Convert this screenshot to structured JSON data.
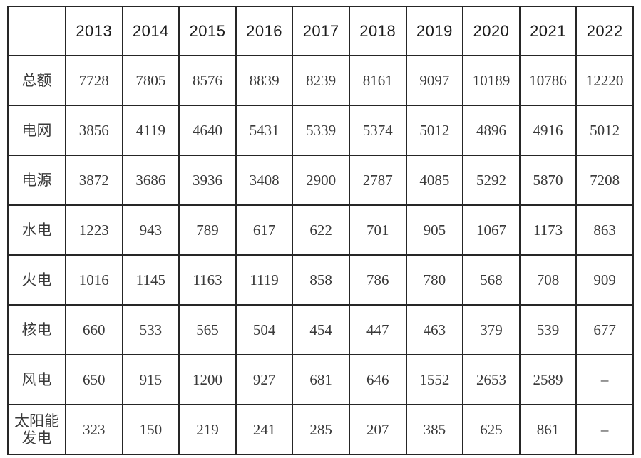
{
  "colors": {
    "background": "#ffffff",
    "border": "#262626",
    "header_text": "#1c1c1c",
    "cell_text": "#3a3a3a"
  },
  "table": {
    "corner_label": "",
    "years": [
      "2013",
      "2014",
      "2015",
      "2016",
      "2017",
      "2018",
      "2019",
      "2020",
      "2021",
      "2022"
    ],
    "rows": [
      {
        "label": "总额",
        "values": [
          "7728",
          "7805",
          "8576",
          "8839",
          "8239",
          "8161",
          "9097",
          "10189",
          "10786",
          "12220"
        ]
      },
      {
        "label": "电网",
        "values": [
          "3856",
          "4119",
          "4640",
          "5431",
          "5339",
          "5374",
          "5012",
          "4896",
          "4916",
          "5012"
        ]
      },
      {
        "label": "电源",
        "values": [
          "3872",
          "3686",
          "3936",
          "3408",
          "2900",
          "2787",
          "4085",
          "5292",
          "5870",
          "7208"
        ]
      },
      {
        "label": "水电",
        "values": [
          "1223",
          "943",
          "789",
          "617",
          "622",
          "701",
          "905",
          "1067",
          "1173",
          "863"
        ]
      },
      {
        "label": "火电",
        "values": [
          "1016",
          "1145",
          "1163",
          "1119",
          "858",
          "786",
          "780",
          "568",
          "708",
          "909"
        ]
      },
      {
        "label": "核电",
        "values": [
          "660",
          "533",
          "565",
          "504",
          "454",
          "447",
          "463",
          "379",
          "539",
          "677"
        ]
      },
      {
        "label": "风电",
        "values": [
          "650",
          "915",
          "1200",
          "927",
          "681",
          "646",
          "1552",
          "2653",
          "2589",
          "–"
        ]
      },
      {
        "label": "太阳能发电",
        "values": [
          "323",
          "150",
          "219",
          "241",
          "285",
          "207",
          "385",
          "625",
          "861",
          "–"
        ]
      }
    ]
  },
  "chart_data": {
    "type": "table",
    "title": "",
    "categories": [
      "2013",
      "2014",
      "2015",
      "2016",
      "2017",
      "2018",
      "2019",
      "2020",
      "2021",
      "2022"
    ],
    "series": [
      {
        "name": "总额",
        "values": [
          7728,
          7805,
          8576,
          8839,
          8239,
          8161,
          9097,
          10189,
          10786,
          12220
        ]
      },
      {
        "name": "电网",
        "values": [
          3856,
          4119,
          4640,
          5431,
          5339,
          5374,
          5012,
          4896,
          4916,
          5012
        ]
      },
      {
        "name": "电源",
        "values": [
          3872,
          3686,
          3936,
          3408,
          2900,
          2787,
          4085,
          5292,
          5870,
          7208
        ]
      },
      {
        "name": "水电",
        "values": [
          1223,
          943,
          789,
          617,
          622,
          701,
          905,
          1067,
          1173,
          863
        ]
      },
      {
        "name": "火电",
        "values": [
          1016,
          1145,
          1163,
          1119,
          858,
          786,
          780,
          568,
          708,
          909
        ]
      },
      {
        "name": "核电",
        "values": [
          660,
          533,
          565,
          504,
          454,
          447,
          463,
          379,
          539,
          677
        ]
      },
      {
        "name": "风电",
        "values": [
          650,
          915,
          1200,
          927,
          681,
          646,
          1552,
          2653,
          2589,
          null
        ]
      },
      {
        "name": "太阳能发电",
        "values": [
          323,
          150,
          219,
          241,
          285,
          207,
          385,
          625,
          861,
          null
        ]
      }
    ],
    "missing_value_symbol": "–"
  }
}
